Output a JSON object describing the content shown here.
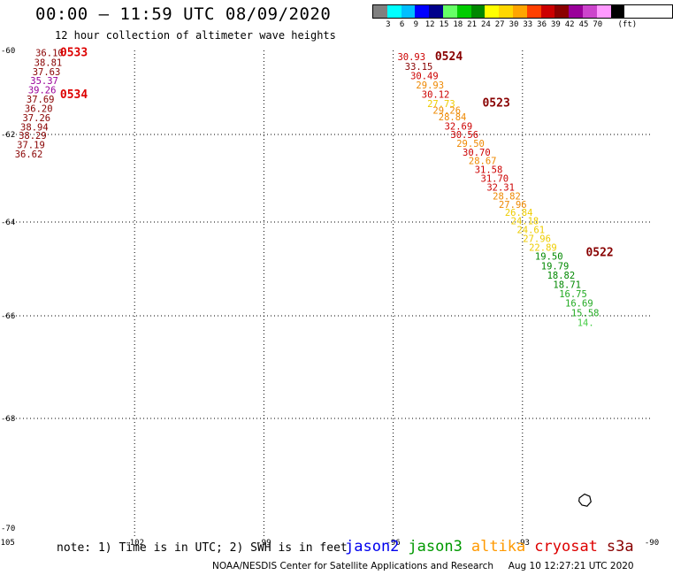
{
  "header": {
    "title": "00:00 – 11:59 UTC 08/09/2020",
    "subtitle": "12 hour collection of altimeter wave heights"
  },
  "legend": {
    "unit": "(ft)",
    "bins": [
      {
        "color": "#808080",
        "label": ""
      },
      {
        "color": "#00ffff",
        "label": "3"
      },
      {
        "color": "#00bfff",
        "label": "6"
      },
      {
        "color": "#0000ff",
        "label": "9"
      },
      {
        "color": "#00008b",
        "label": "12"
      },
      {
        "color": "#66ff66",
        "label": "15"
      },
      {
        "color": "#00cc00",
        "label": "18"
      },
      {
        "color": "#008800",
        "label": "21"
      },
      {
        "color": "#ffff00",
        "label": "24"
      },
      {
        "color": "#ffd700",
        "label": "27"
      },
      {
        "color": "#ffa500",
        "label": "30"
      },
      {
        "color": "#ff4000",
        "label": "33"
      },
      {
        "color": "#cc0000",
        "label": "36"
      },
      {
        "color": "#8b0000",
        "label": "39"
      },
      {
        "color": "#990099",
        "label": "42"
      },
      {
        "color": "#cc44cc",
        "label": "45"
      },
      {
        "color": "#ff99ff",
        "label": "70"
      },
      {
        "color": "#000000",
        "label": ""
      }
    ]
  },
  "map_data": {
    "lon_range": [
      -105,
      -90
    ],
    "lat_range": [
      -70,
      -60
    ],
    "lon_ticks": [
      "-105",
      "-102",
      "-99",
      "-96",
      "-93",
      "-90"
    ],
    "lat_ticks": [
      "-60",
      "-62",
      "-64",
      "-66",
      "-68",
      "-70"
    ],
    "pass_labels": [
      {
        "label": "0533",
        "color": "#dd0000",
        "lon": -103.73,
        "lat": -60.05
      },
      {
        "label": "0534",
        "color": "#dd0000",
        "lon": -103.73,
        "lat": -61.05
      },
      {
        "label": "0524",
        "color": "#880000",
        "lon": -95.03,
        "lat": -60.15
      },
      {
        "label": "0523",
        "color": "#880000",
        "lon": -93.93,
        "lat": -61.25
      },
      {
        "label": "0522",
        "color": "#880000",
        "lon": -91.53,
        "lat": -64.65
      }
    ],
    "tracks": [
      {
        "name": "west",
        "points": [
          {
            "v": "36.10",
            "c": "#880000",
            "lon": -104.3,
            "lat": -60.05
          },
          {
            "v": "38.81",
            "c": "#880000",
            "lon": -104.33,
            "lat": -60.28
          },
          {
            "v": "37.63",
            "c": "#880000",
            "lon": -104.37,
            "lat": -60.5
          },
          {
            "v": "35.37",
            "c": "#990099",
            "lon": -104.42,
            "lat": -60.72
          },
          {
            "v": "39.26",
            "c": "#990099",
            "lon": -104.47,
            "lat": -60.94
          },
          {
            "v": "37.69",
            "c": "#880000",
            "lon": -104.51,
            "lat": -61.16
          },
          {
            "v": "36.20",
            "c": "#880000",
            "lon": -104.55,
            "lat": -61.38
          },
          {
            "v": "37.26",
            "c": "#880000",
            "lon": -104.6,
            "lat": -61.6
          },
          {
            "v": "38.94",
            "c": "#880000",
            "lon": -104.65,
            "lat": -61.82
          },
          {
            "v": "38.29",
            "c": "#880000",
            "lon": -104.69,
            "lat": -62.02
          },
          {
            "v": "37.19",
            "c": "#880000",
            "lon": -104.73,
            "lat": -62.23
          },
          {
            "v": "36.62",
            "c": "#880000",
            "lon": -104.78,
            "lat": -62.44
          }
        ]
      },
      {
        "name": "east",
        "points": [
          {
            "v": "30.93",
            "c": "#cc0000",
            "lon": -95.9,
            "lat": -60.15
          },
          {
            "v": "33.15",
            "c": "#880000",
            "lon": -95.73,
            "lat": -60.38
          },
          {
            "v": "30.49",
            "c": "#cc0000",
            "lon": -95.6,
            "lat": -60.6
          },
          {
            "v": "29.93",
            "c": "#ee8800",
            "lon": -95.47,
            "lat": -60.82
          },
          {
            "v": "30.12",
            "c": "#cc0000",
            "lon": -95.34,
            "lat": -61.04
          },
          {
            "v": "27.73",
            "c": "#eecc00",
            "lon": -95.21,
            "lat": -61.26
          },
          {
            "v": "29.26",
            "c": "#ee8800",
            "lon": -95.08,
            "lat": -61.42
          },
          {
            "v": "28.84",
            "c": "#ee8800",
            "lon": -94.95,
            "lat": -61.58
          },
          {
            "v": "32.69",
            "c": "#cc0000",
            "lon": -94.81,
            "lat": -61.8
          },
          {
            "v": "30.56",
            "c": "#cc0000",
            "lon": -94.67,
            "lat": -62.0
          },
          {
            "v": "29.50",
            "c": "#ee8800",
            "lon": -94.53,
            "lat": -62.2
          },
          {
            "v": "30.70",
            "c": "#cc0000",
            "lon": -94.39,
            "lat": -62.4
          },
          {
            "v": "28.67",
            "c": "#ee8800",
            "lon": -94.25,
            "lat": -62.6
          },
          {
            "v": "31.58",
            "c": "#cc0000",
            "lon": -94.11,
            "lat": -62.8
          },
          {
            "v": "31.70",
            "c": "#cc0000",
            "lon": -93.97,
            "lat": -63.0
          },
          {
            "v": "32.31",
            "c": "#cc0000",
            "lon": -93.83,
            "lat": -63.2
          },
          {
            "v": "28.82",
            "c": "#ee8800",
            "lon": -93.69,
            "lat": -63.4
          },
          {
            "v": "27.96",
            "c": "#ee8800",
            "lon": -93.55,
            "lat": -63.6
          },
          {
            "v": "26.84",
            "c": "#eecc00",
            "lon": -93.41,
            "lat": -63.78
          },
          {
            "v": "24.18",
            "c": "#eecc00",
            "lon": -93.27,
            "lat": -63.97
          },
          {
            "v": "24.61",
            "c": "#eecc00",
            "lon": -93.13,
            "lat": -64.16
          },
          {
            "v": "27.96",
            "c": "#eecc00",
            "lon": -92.99,
            "lat": -64.35
          },
          {
            "v": "22.89",
            "c": "#eecc00",
            "lon": -92.85,
            "lat": -64.54
          },
          {
            "v": "19.50",
            "c": "#008800",
            "lon": -92.71,
            "lat": -64.73
          },
          {
            "v": "19.79",
            "c": "#008800",
            "lon": -92.57,
            "lat": -64.93
          },
          {
            "v": "18.82",
            "c": "#008800",
            "lon": -92.43,
            "lat": -65.13
          },
          {
            "v": "18.71",
            "c": "#008800",
            "lon": -92.29,
            "lat": -65.33
          },
          {
            "v": "16.75",
            "c": "#22aa22",
            "lon": -92.15,
            "lat": -65.53
          },
          {
            "v": "16.69",
            "c": "#22aa22",
            "lon": -92.01,
            "lat": -65.73
          },
          {
            "v": "15.58",
            "c": "#22aa22",
            "lon": -91.87,
            "lat": -65.93
          },
          {
            "v": "14.",
            "c": "#44cc44",
            "lon": -91.73,
            "lat": -66.13
          }
        ]
      }
    ],
    "coastline": [
      [
        -91.68,
        -69.45
      ],
      [
        -91.56,
        -69.38
      ],
      [
        -91.44,
        -69.42
      ],
      [
        -91.41,
        -69.52
      ],
      [
        -91.5,
        -69.6
      ],
      [
        -91.62,
        -69.58
      ],
      [
        -91.69,
        -69.51
      ]
    ]
  },
  "footer": {
    "note": "note: 1) Time is in UTC; 2) SWH is in feet",
    "satellites": [
      {
        "name": "jason2",
        "color": "#0000ee"
      },
      {
        "name": "jason3",
        "color": "#009900"
      },
      {
        "name": "altika",
        "color": "#ff9900"
      },
      {
        "name": "cryosat",
        "color": "#dd0000"
      },
      {
        "name": "s3a",
        "color": "#880000"
      }
    ],
    "credit": "NOAA/NESDIS Center for Satellite Applications and Research",
    "timestamp": "Aug 10 12:27:21 UTC 2020"
  }
}
